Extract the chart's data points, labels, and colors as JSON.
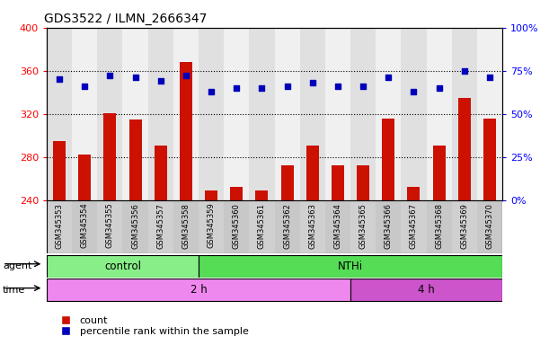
{
  "title": "GDS3522 / ILMN_2666347",
  "samples": [
    "GSM345353",
    "GSM345354",
    "GSM345355",
    "GSM345356",
    "GSM345357",
    "GSM345358",
    "GSM345359",
    "GSM345360",
    "GSM345361",
    "GSM345362",
    "GSM345363",
    "GSM345364",
    "GSM345365",
    "GSM345366",
    "GSM345367",
    "GSM345368",
    "GSM345369",
    "GSM345370"
  ],
  "counts": [
    295,
    282,
    321,
    315,
    291,
    368,
    249,
    252,
    249,
    272,
    291,
    272,
    272,
    316,
    252,
    291,
    335,
    316
  ],
  "percentiles": [
    70,
    66,
    72,
    71,
    69,
    72,
    63,
    65,
    65,
    66,
    68,
    66,
    66,
    71,
    63,
    65,
    75,
    71
  ],
  "agent_groups": [
    {
      "label": "control",
      "start": 0,
      "end": 6,
      "color": "#88ee88"
    },
    {
      "label": "NTHi",
      "start": 6,
      "end": 18,
      "color": "#55dd55"
    }
  ],
  "time_groups": [
    {
      "label": "2 h",
      "start": 0,
      "end": 12,
      "color": "#ee88ee"
    },
    {
      "label": "4 h",
      "start": 12,
      "end": 18,
      "color": "#cc55cc"
    }
  ],
  "bar_color": "#cc1100",
  "dot_color": "#0000bb",
  "ylim_left": [
    240,
    400
  ],
  "ylim_right": [
    0,
    100
  ],
  "yticks_left": [
    240,
    280,
    320,
    360,
    400
  ],
  "yticks_right": [
    0,
    25,
    50,
    75,
    100
  ],
  "background_color": "#ffffff",
  "plot_bg_color": "#ffffff",
  "col_bg_even": "#e0e0e0",
  "col_bg_odd": "#f0f0f0",
  "legend_count_label": "count",
  "legend_pct_label": "percentile rank within the sample"
}
